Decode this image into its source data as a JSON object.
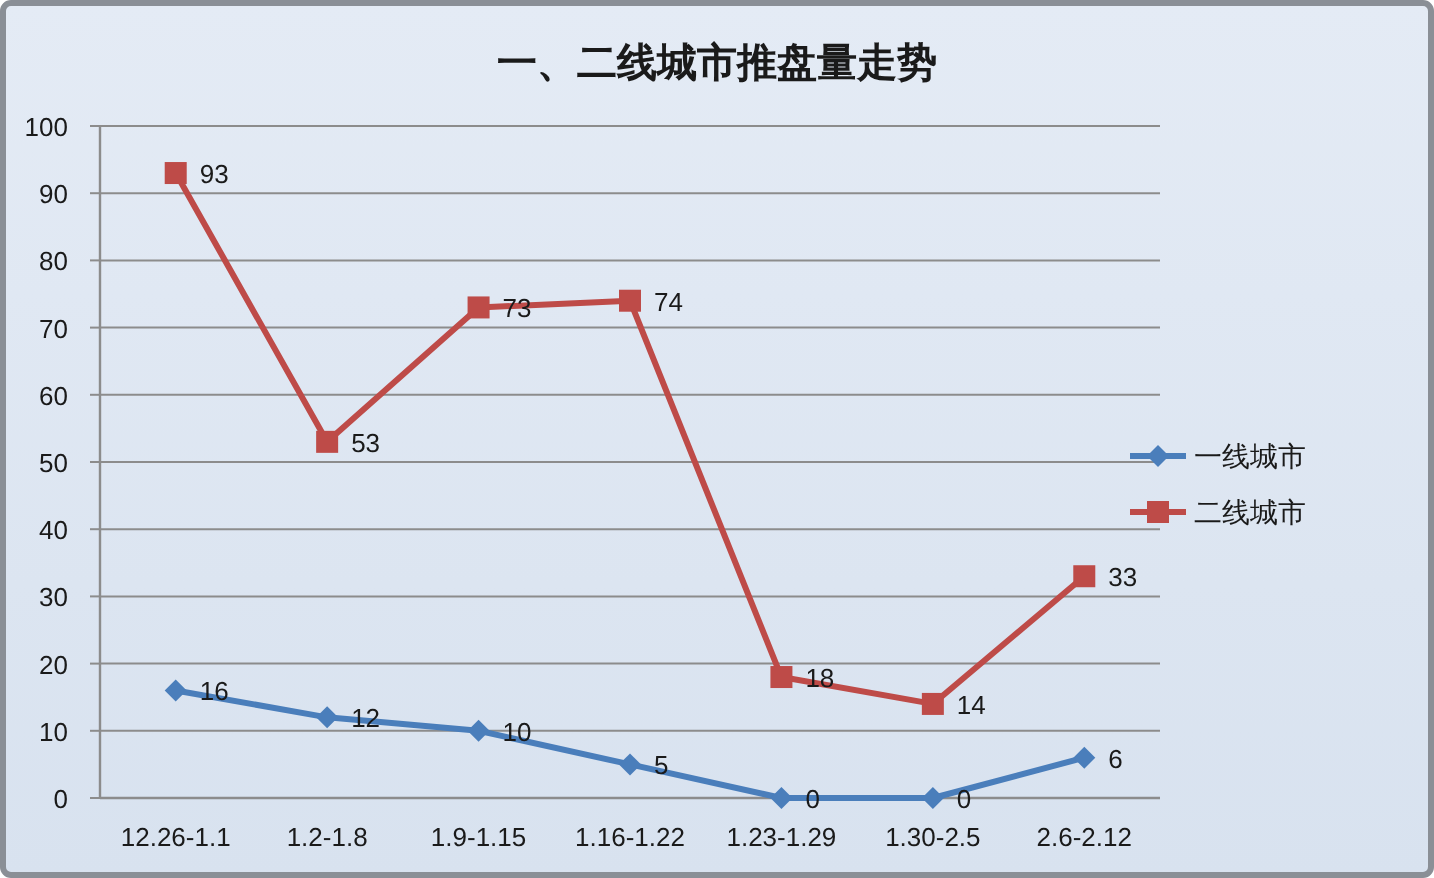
{
  "chart_data": {
    "type": "line",
    "title": "一、二线城市推盘量走势",
    "categories": [
      "12.26-1.1",
      "1.2-1.8",
      "1.9-1.15",
      "1.16-1.22",
      "1.23-1.29",
      "1.30-2.5",
      "2.6-2.12"
    ],
    "series": [
      {
        "name": "一线城市",
        "color": "#4a7ebb",
        "marker": "diamond",
        "values": [
          16,
          12,
          10,
          5,
          0,
          0,
          6
        ]
      },
      {
        "name": "二线城市",
        "color": "#be4b48",
        "marker": "square",
        "values": [
          93,
          53,
          73,
          74,
          18,
          14,
          33
        ]
      }
    ],
    "ylim": [
      0,
      100
    ],
    "yticks": [
      0,
      10,
      20,
      30,
      40,
      50,
      60,
      70,
      80,
      90,
      100
    ],
    "grid": "y",
    "legend": "right",
    "data_labels": true
  }
}
